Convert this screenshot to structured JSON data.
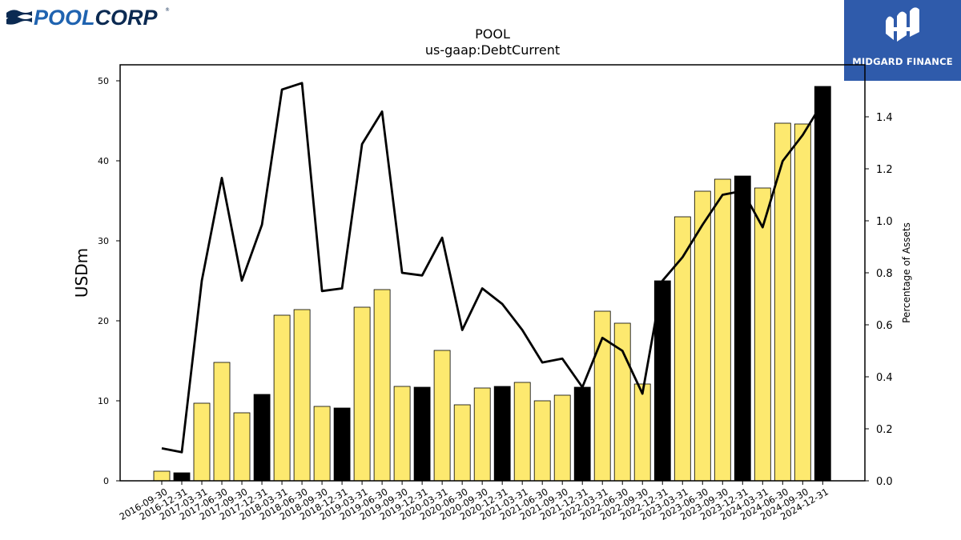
{
  "logos": {
    "left_text": "POOLCORP",
    "right_text": "MIDGARD FINANCE"
  },
  "chart_data": {
    "type": "bar",
    "title": "POOL",
    "subtitle": "us-gaap:DebtCurrent",
    "ylabel": "USDm",
    "y2label": "Percentage of Assets",
    "ylim": [
      0,
      52
    ],
    "y2lim": [
      0,
      1.6
    ],
    "yticks": [
      0,
      10,
      20,
      30,
      40,
      50
    ],
    "y2ticks": [
      0.0,
      0.2,
      0.4,
      0.6,
      0.8,
      1.0,
      1.2,
      1.4
    ],
    "categories": [
      "2016-09-30",
      "2016-12-31",
      "2017-03-31",
      "2017-06-30",
      "2017-09-30",
      "2017-12-31",
      "2018-03-31",
      "2018-06-30",
      "2018-09-30",
      "2018-12-31",
      "2019-03-31",
      "2019-06-30",
      "2019-09-30",
      "2019-12-31",
      "2020-03-31",
      "2020-06-30",
      "2020-09-30",
      "2020-12-31",
      "2021-03-31",
      "2021-06-30",
      "2021-09-30",
      "2021-12-31",
      "2022-03-31",
      "2022-06-30",
      "2022-09-30",
      "2022-12-31",
      "2023-03-31",
      "2023-06-30",
      "2023-09-30",
      "2023-12-31",
      "2024-03-31",
      "2024-06-30",
      "2024-09-30",
      "2024-12-31"
    ],
    "series": [
      {
        "type": "bar",
        "axis": "left",
        "values": [
          1.2,
          1.0,
          9.7,
          14.8,
          8.5,
          10.8,
          20.7,
          21.4,
          9.3,
          9.1,
          21.7,
          23.9,
          11.8,
          11.7,
          16.3,
          9.5,
          11.6,
          11.8,
          12.3,
          10.0,
          10.7,
          11.7,
          21.2,
          19.7,
          12.1,
          25.0,
          33.0,
          36.2,
          37.7,
          38.1,
          36.6,
          44.7,
          44.6,
          49.3
        ],
        "colors": [
          "#fde96f",
          "#000000",
          "#fde96f",
          "#fde96f",
          "#fde96f",
          "#000000",
          "#fde96f",
          "#fde96f",
          "#fde96f",
          "#000000",
          "#fde96f",
          "#fde96f",
          "#fde96f",
          "#000000",
          "#fde96f",
          "#fde96f",
          "#fde96f",
          "#000000",
          "#fde96f",
          "#fde96f",
          "#fde96f",
          "#000000",
          "#fde96f",
          "#fde96f",
          "#fde96f",
          "#000000",
          "#fde96f",
          "#fde96f",
          "#fde96f",
          "#000000",
          "#fde96f",
          "#fde96f",
          "#fde96f",
          "#000000"
        ]
      },
      {
        "type": "line",
        "axis": "right",
        "color": "#000000",
        "values": [
          0.125,
          0.11,
          0.77,
          1.165,
          0.77,
          0.985,
          1.505,
          1.53,
          0.73,
          0.74,
          1.295,
          1.42,
          0.8,
          0.79,
          0.935,
          0.58,
          0.74,
          0.68,
          0.58,
          0.455,
          0.47,
          0.36,
          0.55,
          0.5,
          0.335,
          0.77,
          0.86,
          0.985,
          1.1,
          1.115,
          0.975,
          1.23,
          1.33,
          1.455
        ]
      }
    ],
    "grid": false,
    "legend": "none"
  }
}
